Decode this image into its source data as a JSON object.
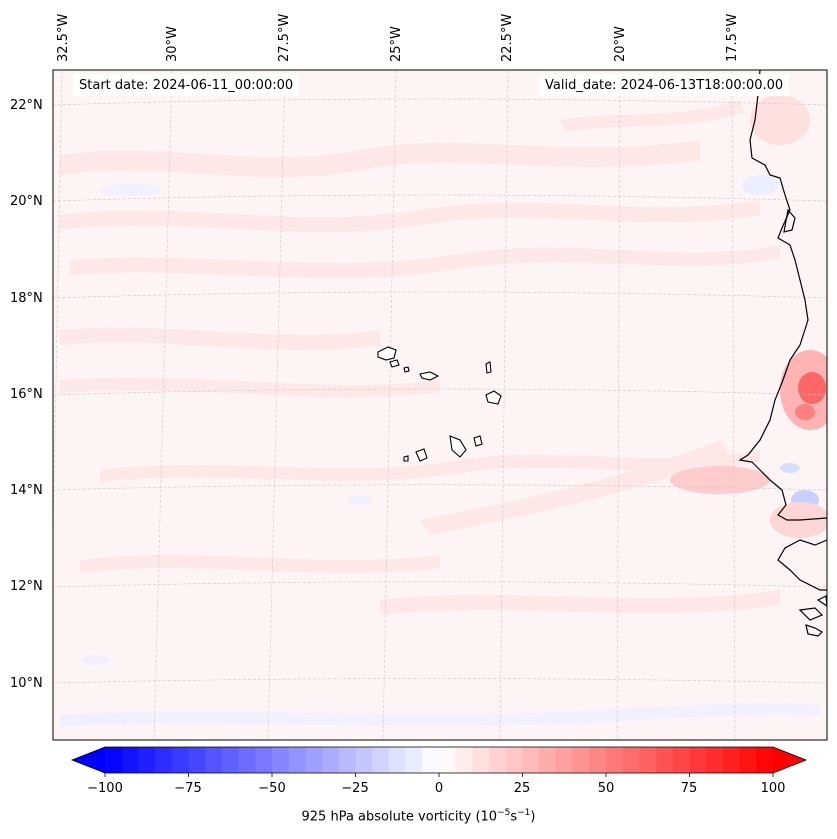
{
  "map": {
    "start_date": "Start date: 2024-06-11_00:00:00",
    "valid_date": "Valid_date: 2024-06-13T18:00:00.00",
    "lon_labels": [
      "32.5°W",
      "30°W",
      "27.5°W",
      "25°W",
      "22.5°W",
      "20°W",
      "17.5°W"
    ],
    "lat_labels": [
      "22°N",
      "20°N",
      "18°N",
      "16°N",
      "14°N",
      "12°N",
      "10°N"
    ]
  },
  "colorbar": {
    "title_prefix": "925 hPa absolute vorticity (10",
    "title_exp1": "−5",
    "title_mid": "s",
    "title_exp2": "−1",
    "title_suffix": ")",
    "ticks": [
      "−100",
      "−75",
      "−50",
      "−25",
      "0",
      "25",
      "50",
      "75",
      "100"
    ],
    "min": -100,
    "max": 100,
    "colors": {
      "neg": "#0000ff",
      "mid": "#ffffff",
      "pos": "#ff0000"
    }
  }
}
